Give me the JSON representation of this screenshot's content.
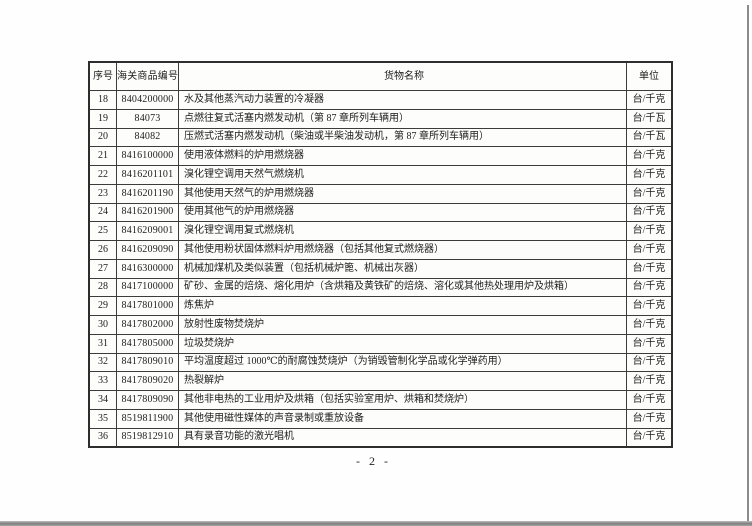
{
  "page": {
    "number_label": "- 2 -"
  },
  "table": {
    "headers": [
      "序号",
      "海关商品编号",
      "货物名称",
      "单位"
    ],
    "rows": [
      {
        "no": "18",
        "code": "8404200000",
        "name": "水及其他蒸汽动力装置的冷凝器",
        "unit": "台/千克"
      },
      {
        "no": "19",
        "code": "84073",
        "name": "点燃往复式活塞内燃发动机（第 87 章所列车辆用）",
        "unit": "台/千瓦"
      },
      {
        "no": "20",
        "code": "84082",
        "name": "压燃式活塞内燃发动机（柴油或半柴油发动机，第 87 章所列车辆用）",
        "unit": "台/千瓦"
      },
      {
        "no": "21",
        "code": "8416100000",
        "name": "使用液体燃料的炉用燃烧器",
        "unit": "台/千克"
      },
      {
        "no": "22",
        "code": "8416201101",
        "name": "溴化锂空调用天然气燃烧机",
        "unit": "台/千克"
      },
      {
        "no": "23",
        "code": "8416201190",
        "name": "其他使用天然气的炉用燃烧器",
        "unit": "台/千克"
      },
      {
        "no": "24",
        "code": "8416201900",
        "name": "使用其他气的炉用燃烧器",
        "unit": "台/千克"
      },
      {
        "no": "25",
        "code": "8416209001",
        "name": "溴化锂空调用复式燃烧机",
        "unit": "台/千克"
      },
      {
        "no": "26",
        "code": "8416209090",
        "name": "其他使用粉状固体燃料炉用燃烧器（包括其他复式燃烧器）",
        "unit": "台/千克"
      },
      {
        "no": "27",
        "code": "8416300000",
        "name": "机械加煤机及类似装置（包括机械炉篦、机械出灰器）",
        "unit": "台/千克"
      },
      {
        "no": "28",
        "code": "8417100000",
        "name": "矿砂、金属的焙烧、熔化用炉（含烘箱及黄铁矿的焙烧、溶化或其他热处理用炉及烘箱）",
        "unit": "台/千克"
      },
      {
        "no": "29",
        "code": "8417801000",
        "name": "炼焦炉",
        "unit": "台/千克"
      },
      {
        "no": "30",
        "code": "8417802000",
        "name": "放射性废物焚烧炉",
        "unit": "台/千克"
      },
      {
        "no": "31",
        "code": "8417805000",
        "name": "垃圾焚烧炉",
        "unit": "台/千克"
      },
      {
        "no": "32",
        "code": "8417809010",
        "name": "平均温度超过 1000℃的耐腐蚀焚烧炉（为销毁管制化学品或化学弹药用）",
        "unit": "台/千克"
      },
      {
        "no": "33",
        "code": "8417809020",
        "name": "热裂解炉",
        "unit": "台/千克"
      },
      {
        "no": "34",
        "code": "8417809090",
        "name": "其他非电热的工业用炉及烘箱（包括实验室用炉、烘箱和焚烧炉）",
        "unit": "台/千克"
      },
      {
        "no": "35",
        "code": "8519811900",
        "name": "其他使用磁性媒体的声音录制或重放设备",
        "unit": "台/千克"
      },
      {
        "no": "36",
        "code": "8519812910",
        "name": "具有录音功能的激光唱机",
        "unit": "台/千克"
      }
    ]
  }
}
